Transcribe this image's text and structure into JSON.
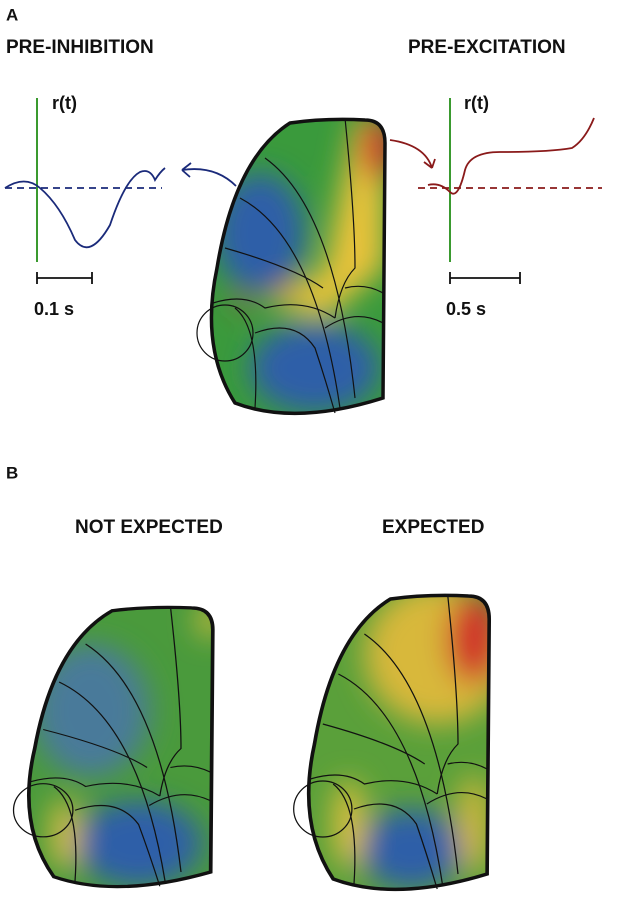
{
  "panel_a": {
    "label": "A",
    "left": {
      "title": "PRE-INHIBITION",
      "axis_label": "r(t)",
      "scale_label": "0.1 s"
    },
    "right": {
      "title": "PRE-EXCITATION",
      "axis_label": "r(t)",
      "scale_label": "0.5 s"
    }
  },
  "panel_b": {
    "label": "B",
    "left": {
      "title": "NOT EXPECTED"
    },
    "right": {
      "title": "EXPECTED"
    }
  }
}
